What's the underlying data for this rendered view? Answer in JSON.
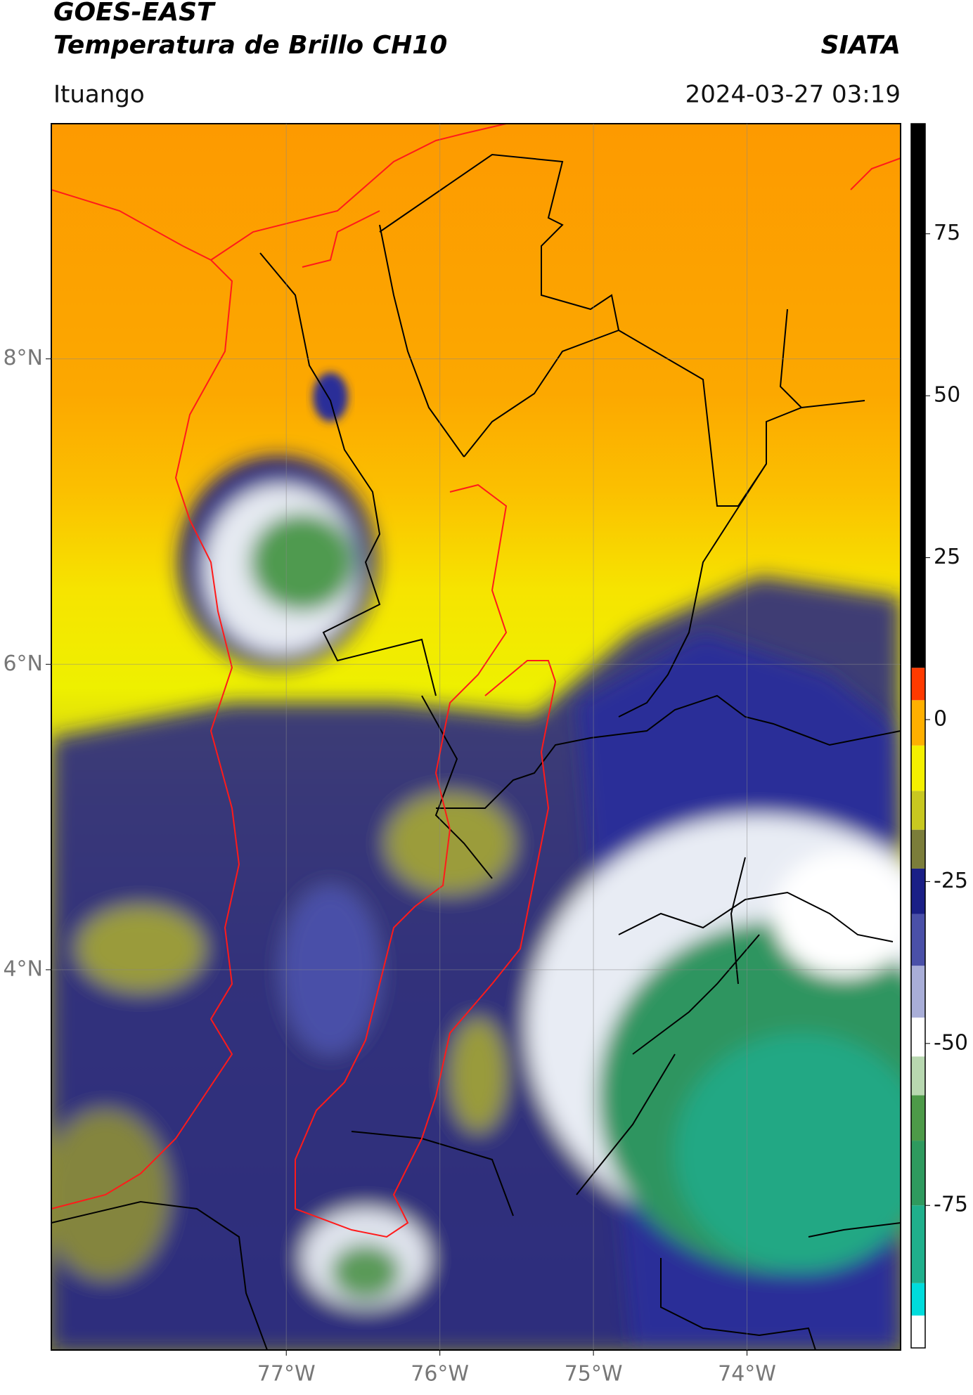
{
  "chart_data": {
    "type": "map",
    "title": "GOES-EAST",
    "subtitle": "Temperatura de Brillo CH10",
    "source": "SIATA",
    "region": "Ituango",
    "timestamp": "2024-03-27 03:19",
    "xlim": [
      -78.53,
      -73.0
    ],
    "ylim": [
      1.51,
      9.54
    ],
    "xticks": [
      {
        "value": -77,
        "label": "77°W"
      },
      {
        "value": -76,
        "label": "76°W"
      },
      {
        "value": -75,
        "label": "75°W"
      },
      {
        "value": -74,
        "label": "74°W"
      }
    ],
    "yticks": [
      {
        "value": 4,
        "label": "4°N"
      },
      {
        "value": 6,
        "label": "6°N"
      },
      {
        "value": 8,
        "label": "8°N"
      }
    ],
    "grid": true,
    "colorbar": {
      "lim": [
        -97,
        92
      ],
      "ticks": [
        -75,
        -50,
        -25,
        0,
        25,
        50,
        75
      ],
      "segments": [
        {
          "from": -97,
          "to": -92,
          "color": "#ffffff"
        },
        {
          "from": -92,
          "to": -87,
          "color": "#00dcdc"
        },
        {
          "from": -87,
          "to": -75,
          "color": "#1fb08c"
        },
        {
          "from": -75,
          "to": -65,
          "color": "#2e9a5e"
        },
        {
          "from": -65,
          "to": -58,
          "color": "#4d9a48"
        },
        {
          "from": -58,
          "to": -52,
          "color": "#b8d8b0"
        },
        {
          "from": -52,
          "to": -46,
          "color": "#ffffff"
        },
        {
          "from": -46,
          "to": -38,
          "color": "#a9aed8"
        },
        {
          "from": -38,
          "to": -30,
          "color": "#4a50a8"
        },
        {
          "from": -30,
          "to": -23,
          "color": "#1a1f86"
        },
        {
          "from": -23,
          "to": -17,
          "color": "#7b7d3a"
        },
        {
          "from": -17,
          "to": -11,
          "color": "#c8c820"
        },
        {
          "from": -11,
          "to": -4,
          "color": "#f4f000"
        },
        {
          "from": -4,
          "to": 3,
          "color": "#ffb000"
        },
        {
          "from": 3,
          "to": 8,
          "color": "#ff3a00"
        },
        {
          "from": 8,
          "to": 92,
          "color": "#000000"
        }
      ]
    }
  }
}
